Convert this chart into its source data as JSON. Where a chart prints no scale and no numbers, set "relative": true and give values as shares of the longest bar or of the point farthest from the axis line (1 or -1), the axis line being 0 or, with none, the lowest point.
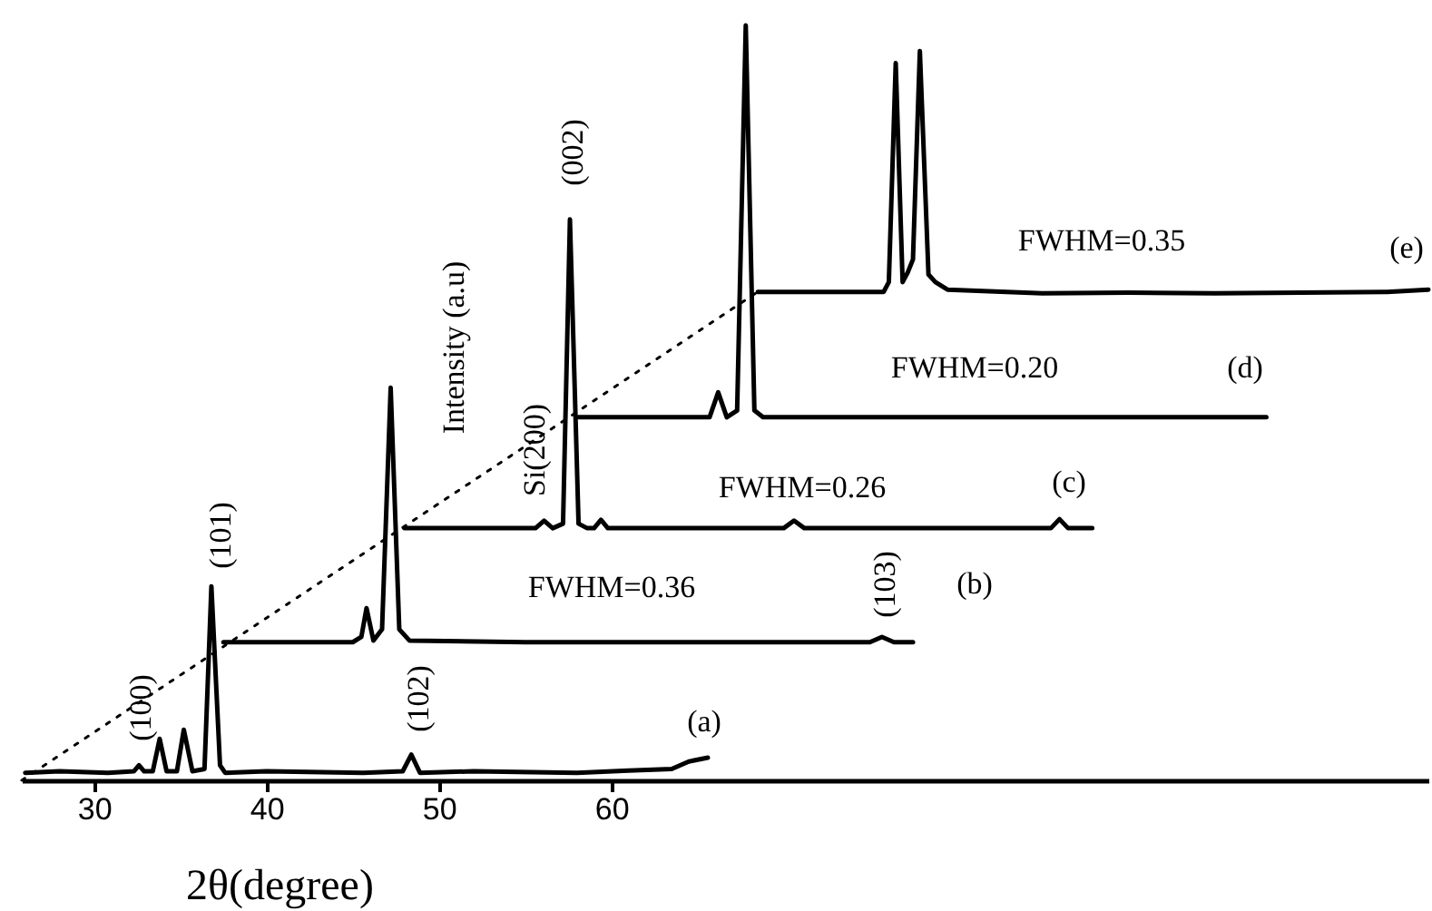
{
  "chart_data": {
    "type": "line",
    "relative": true,
    "xlabel": "2θ(degree)",
    "ylabel": "Intensity (a.u)",
    "xlim": [
      25.8,
      107.4
    ],
    "xticks": [
      30,
      40,
      50,
      60
    ],
    "grid": false,
    "line_style": "solid",
    "series": [
      {
        "color": "#000000",
        "x": [
          26.0,
          28.0,
          30.8,
          32.3,
          32.6,
          32.9,
          33.4,
          33.8,
          34.2,
          34.8,
          35.2,
          35.7,
          36.4,
          36.8,
          37.3,
          37.6,
          40.0,
          45.6,
          47.9,
          48.4,
          48.9,
          52.0,
          58.0,
          61.0,
          63.5,
          64.5,
          65.6
        ],
        "values": [
          0.01,
          0.012,
          0.01,
          0.012,
          0.02,
          0.012,
          0.012,
          0.055,
          0.012,
          0.012,
          0.067,
          0.012,
          0.015,
          0.257,
          0.02,
          0.01,
          0.012,
          0.01,
          0.012,
          0.034,
          0.01,
          0.012,
          0.01,
          0.013,
          0.015,
          0.025,
          0.03
        ]
      },
      {
        "color": "#000000",
        "x": [
          37.5,
          45.0,
          45.5,
          45.8,
          46.2,
          46.7,
          47.2,
          47.7,
          48.3,
          55.0,
          75.0,
          75.7,
          76.4,
          77.5
        ],
        "values": [
          0.183,
          0.183,
          0.19,
          0.228,
          0.185,
          0.2,
          0.52,
          0.2,
          0.185,
          0.183,
          0.183,
          0.19,
          0.183,
          0.183
        ]
      },
      {
        "color": "#000000",
        "x": [
          48.0,
          55.6,
          56.1,
          56.6,
          57.2,
          57.6,
          58.1,
          58.6,
          59.0,
          59.4,
          59.8,
          70.0,
          70.6,
          71.2,
          85.5,
          86.0,
          86.5,
          87.9
        ],
        "values": [
          0.334,
          0.334,
          0.344,
          0.334,
          0.34,
          0.743,
          0.34,
          0.334,
          0.334,
          0.345,
          0.334,
          0.334,
          0.344,
          0.334,
          0.334,
          0.346,
          0.334,
          0.334
        ]
      },
      {
        "color": "#000000",
        "x": [
          58.1,
          65.7,
          66.2,
          66.7,
          67.3,
          67.8,
          68.3,
          68.8,
          98.0
        ],
        "values": [
          0.481,
          0.481,
          0.514,
          0.481,
          0.49,
          1.0,
          0.49,
          0.481,
          0.481
        ]
      },
      {
        "color": "#000000",
        "x": [
          68.5,
          75.8,
          76.1,
          76.5,
          76.9,
          77.2,
          77.5,
          77.9,
          78.4,
          78.8,
          79.5,
          85.0,
          90.0,
          95.0,
          100.0,
          105.0,
          107.4
        ],
        "values": [
          0.647,
          0.647,
          0.66,
          0.95,
          0.66,
          0.673,
          0.69,
          0.966,
          0.67,
          0.66,
          0.65,
          0.645,
          0.646,
          0.645,
          0.646,
          0.647,
          0.65
        ]
      },
      {
        "color": "#000000",
        "line_style": "dotted",
        "x": [
          25.8,
          68.5
        ],
        "values": [
          0.0,
          0.647
        ]
      }
    ],
    "annotations": [
      "(100)",
      "(101)",
      "(102)",
      "(103)",
      "Si(200)",
      "(002)",
      "FWHM=0.36",
      "FWHM=0.26",
      "FWHM=0.20",
      "FWHM=0.35",
      "(a)",
      "(b)",
      "(c)",
      "(d)",
      "(e)"
    ]
  }
}
